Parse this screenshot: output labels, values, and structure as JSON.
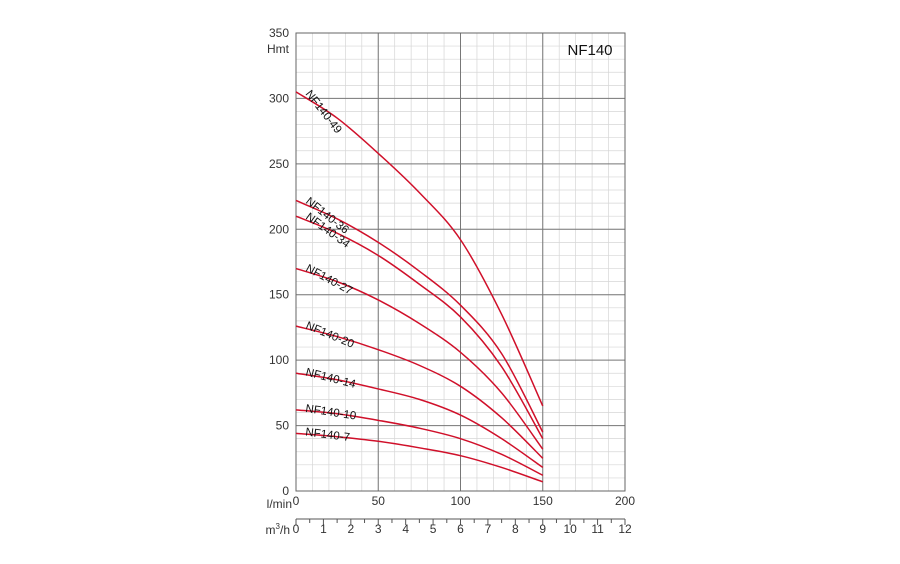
{
  "chart_data": {
    "type": "line",
    "title": "NF140",
    "ylabel": "Hmt",
    "xlabel": "l/min",
    "x2label_base": "m",
    "x2label_sup": "3",
    "x2label_suffix": "/h",
    "xlim": [
      0,
      200
    ],
    "ylim": [
      0,
      350
    ],
    "x_ticks": [
      "0",
      "50",
      "100",
      "150",
      "200"
    ],
    "y_ticks": [
      "0",
      "50",
      "100",
      "150",
      "200",
      "250",
      "300",
      "350"
    ],
    "x2_ticks": [
      "0",
      "1",
      "2",
      "3",
      "4",
      "5",
      "6",
      "7",
      "8",
      "9",
      "10",
      "11",
      "12"
    ],
    "grid": true,
    "line_color": "#d0102a",
    "series": [
      {
        "name": "NF140-49",
        "x": [
          0,
          25,
          50,
          75,
          100,
          125,
          150
        ],
        "y": [
          305,
          285,
          258,
          228,
          192,
          135,
          65
        ]
      },
      {
        "name": "NF140-36",
        "x": [
          0,
          25,
          50,
          75,
          100,
          125,
          150
        ],
        "y": [
          222,
          208,
          190,
          168,
          142,
          105,
          45
        ]
      },
      {
        "name": "NF140-34",
        "x": [
          0,
          25,
          50,
          75,
          100,
          125,
          150
        ],
        "y": [
          210,
          197,
          180,
          158,
          133,
          95,
          40
        ]
      },
      {
        "name": "NF140-27",
        "x": [
          0,
          25,
          50,
          75,
          100,
          125,
          150
        ],
        "y": [
          170,
          160,
          146,
          128,
          106,
          75,
          32
        ]
      },
      {
        "name": "NF140-20",
        "x": [
          0,
          25,
          50,
          75,
          100,
          125,
          150
        ],
        "y": [
          126,
          118,
          108,
          96,
          80,
          56,
          25
        ]
      },
      {
        "name": "NF140-14",
        "x": [
          0,
          25,
          50,
          75,
          100,
          125,
          150
        ],
        "y": [
          90,
          85,
          78,
          70,
          58,
          40,
          18
        ]
      },
      {
        "name": "NF140-10",
        "x": [
          0,
          25,
          50,
          75,
          100,
          125,
          150
        ],
        "y": [
          62,
          59,
          54,
          48,
          40,
          28,
          12
        ]
      },
      {
        "name": "NF140-7",
        "x": [
          0,
          25,
          50,
          75,
          100,
          125,
          150
        ],
        "y": [
          44,
          41.5,
          38,
          33,
          27,
          18,
          7
        ]
      }
    ]
  }
}
